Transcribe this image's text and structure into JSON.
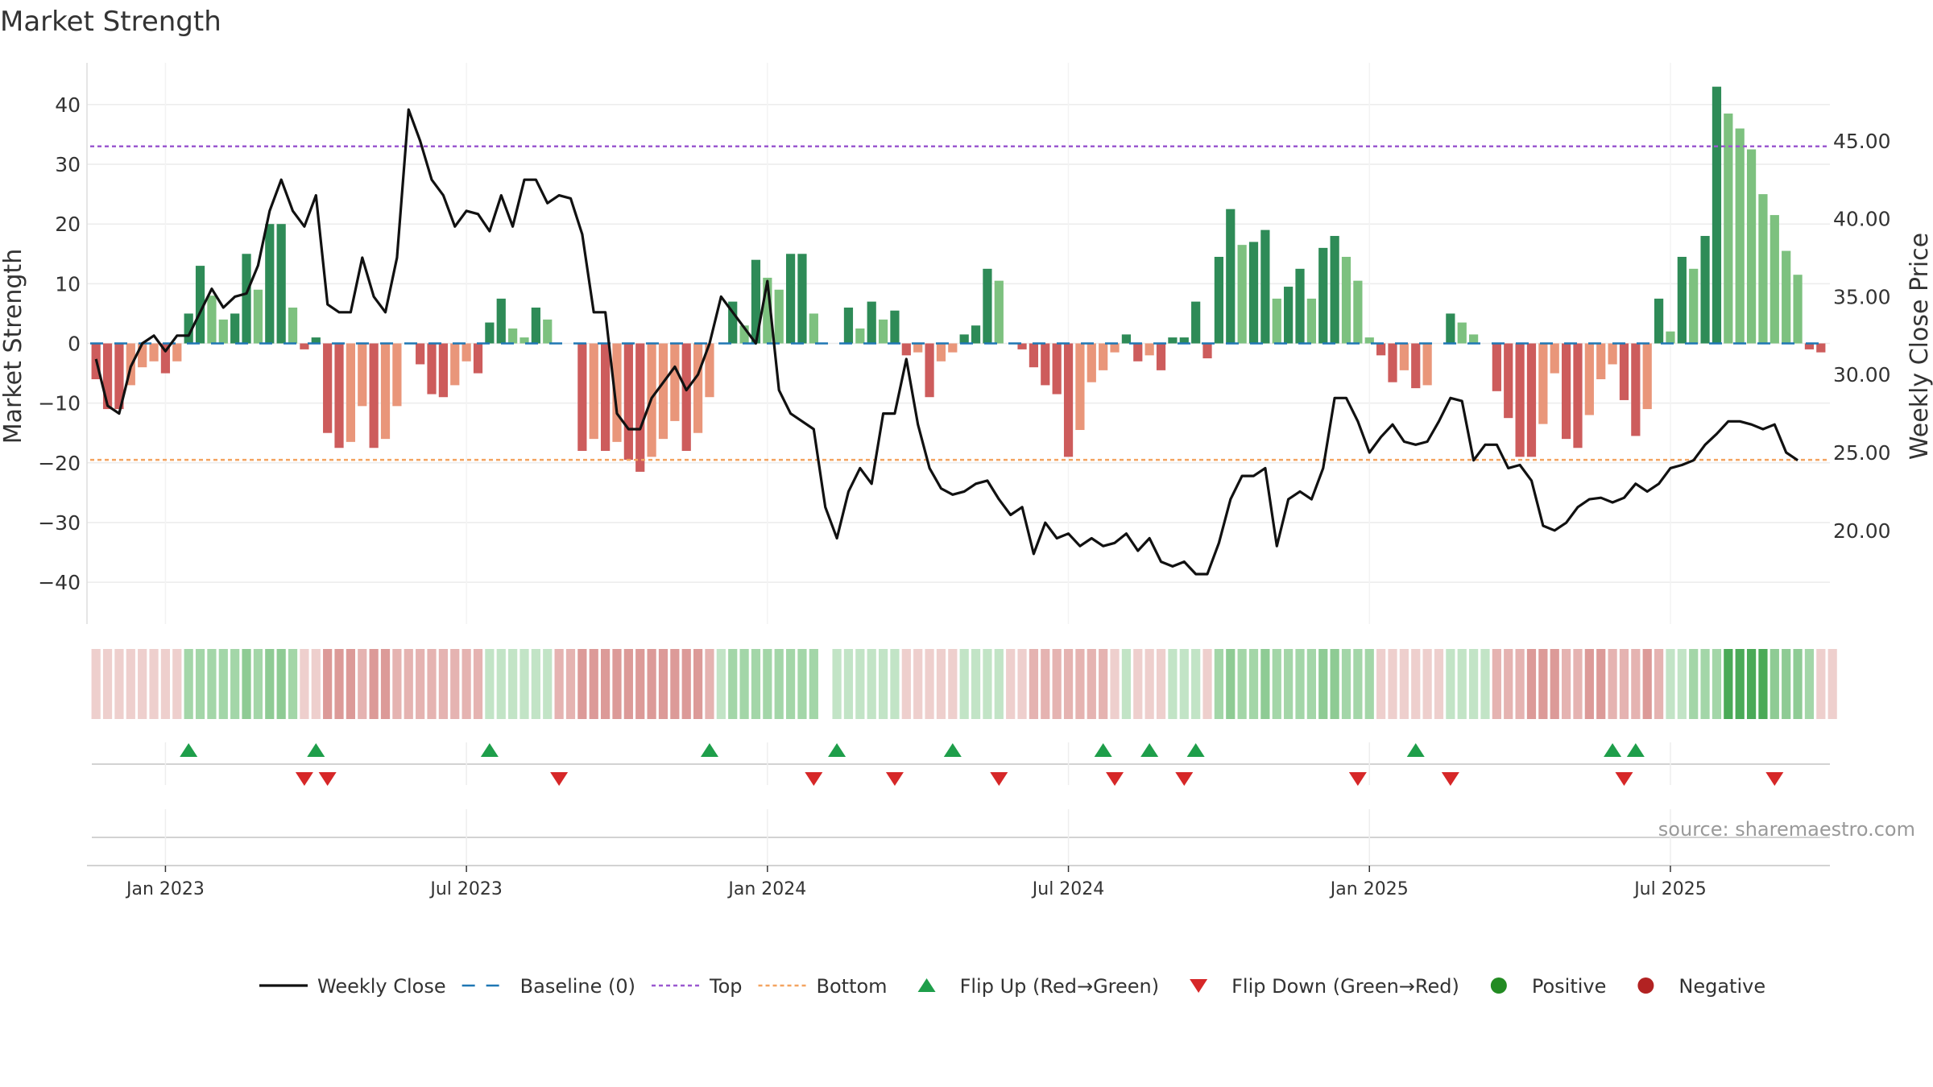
{
  "chart_data": {
    "type": "bar",
    "title": "Market Strength",
    "ylabel_left": "Market Strength",
    "ylabel_right": "Weekly Close Price",
    "ylim_left": [
      -47,
      47
    ],
    "ylim_right": [
      14.0,
      50.0
    ],
    "left_ticks": [
      {
        "v": 40,
        "label": "40"
      },
      {
        "v": 30,
        "label": "30"
      },
      {
        "v": 20,
        "label": "20"
      },
      {
        "v": 10,
        "label": "10"
      },
      {
        "v": 0,
        "label": "0"
      },
      {
        "v": -10,
        "label": "−10"
      },
      {
        "v": -20,
        "label": "−20"
      },
      {
        "v": -30,
        "label": "−30"
      },
      {
        "v": -40,
        "label": "−40"
      }
    ],
    "right_ticks": [
      {
        "v": 45,
        "label": "45.00"
      },
      {
        "v": 40,
        "label": "40.00"
      },
      {
        "v": 35,
        "label": "35.00"
      },
      {
        "v": 30,
        "label": "30.00"
      },
      {
        "v": 25,
        "label": "25.00"
      },
      {
        "v": 20,
        "label": "20.00"
      }
    ],
    "x_ticks": [
      {
        "week": 6,
        "label": "Jan 2023"
      },
      {
        "week": 32,
        "label": "Jul 2023"
      },
      {
        "week": 58,
        "label": "Jan 2024"
      },
      {
        "week": 84,
        "label": "Jul 2024"
      },
      {
        "week": 110,
        "label": "Jan 2025"
      },
      {
        "week": 136,
        "label": "Jul 2025"
      }
    ],
    "top_line": 33,
    "bottom_line": -19.5,
    "strength": [
      -6,
      -11,
      -11,
      -7,
      -4,
      -3,
      -5,
      -3,
      5,
      13,
      8,
      4,
      5,
      15,
      9,
      20,
      20,
      6,
      -1,
      1,
      -15,
      -17.5,
      -16.5,
      -10.5,
      -17.5,
      -16,
      -10.5,
      0,
      -3.5,
      -8.5,
      -9,
      -7,
      -3,
      -5,
      3.5,
      7.5,
      2.5,
      1,
      6,
      4,
      0,
      0,
      -18,
      -16,
      -18,
      -16.5,
      -19.5,
      -21.5,
      -19,
      -16,
      -13,
      -18,
      -15,
      -9,
      0,
      7,
      3,
      14,
      11,
      9,
      15,
      15,
      5,
      0,
      0,
      6,
      2.5,
      7,
      4,
      5.5,
      -2,
      -1.5,
      -9,
      -3,
      -1.5,
      1.5,
      3,
      12.5,
      10.5,
      0,
      -1,
      -4,
      -7,
      -8.5,
      -19,
      -14.5,
      -6.5,
      -4.5,
      -1.5,
      1.5,
      -3,
      -2,
      -4.5,
      1,
      1,
      7,
      -2.5,
      14.5,
      22.5,
      16.5,
      17,
      19,
      7.5,
      9.5,
      12.5,
      7.5,
      16,
      18,
      14.5,
      10.5,
      1,
      -2,
      -6.5,
      -4.5,
      -7.5,
      -7,
      0,
      5,
      3.5,
      1.5,
      0,
      -8,
      -12.5,
      -19,
      -19,
      -13.5,
      -5,
      -16,
      -17.5,
      -12,
      -6,
      -3.5,
      -9.5,
      -15.5,
      -11,
      7.5,
      2,
      14.5,
      12.5,
      18,
      43,
      38.5,
      36,
      32.5,
      25,
      21.5,
      15.5,
      11.5,
      -1,
      -1.5
    ],
    "weekly_close": [
      31,
      28,
      27.5,
      30.5,
      32,
      32.5,
      31.5,
      32.5,
      32.5,
      34,
      35.5,
      34.3,
      35,
      35.2,
      37,
      40.5,
      42.5,
      40.5,
      39.5,
      41.5,
      34.5,
      34,
      34,
      37.5,
      35,
      34,
      37.5,
      47,
      45,
      42.5,
      41.5,
      39.5,
      40.5,
      40.3,
      39.2,
      41.5,
      39.5,
      42.5,
      42.5,
      41,
      41.5,
      41.3,
      39,
      34,
      34,
      27.5,
      26.5,
      26.5,
      28.5,
      29.5,
      30.5,
      29,
      30,
      32,
      35,
      34,
      33,
      32,
      36,
      29,
      27.5,
      27,
      26.5,
      21.5,
      19.5,
      22.5,
      24,
      23,
      27.5,
      27.5,
      31,
      26.8,
      24,
      22.7,
      22.3,
      22.5,
      23,
      23.2,
      22,
      21,
      21.5,
      18.5,
      20.5,
      19.5,
      19.8,
      19,
      19.5,
      19,
      19.2,
      19.8,
      18.7,
      19.5,
      18,
      17.7,
      18,
      17.2,
      17.2,
      19.2,
      22,
      23.5,
      23.5,
      24,
      19,
      22,
      22.5,
      22,
      24,
      28.5,
      28.5,
      27,
      25,
      26,
      26.8,
      25.7,
      25.5,
      25.7,
      27,
      28.5,
      28.3,
      24.5,
      25.5,
      25.5,
      24,
      24.2,
      23.2,
      20.3,
      20,
      20.5,
      21.5,
      22,
      22.1,
      21.8,
      22.1,
      23,
      22.5,
      23,
      24,
      24.2,
      24.5,
      25.5,
      26.2,
      27,
      27,
      26.8,
      26.5,
      26.8,
      25,
      24.5
    ],
    "strip_shade": [
      -1,
      -1,
      -1,
      -1,
      -1,
      -1,
      -1,
      -1,
      2,
      2,
      2,
      2,
      2,
      3,
      2,
      3,
      3,
      2,
      -1,
      -1,
      -3,
      -3,
      -3,
      -2,
      -3,
      -3,
      -2,
      -2,
      -2,
      -2,
      -2,
      -2,
      -2,
      -2,
      1,
      1,
      1,
      1,
      1,
      1,
      -2,
      -2,
      -3,
      -3,
      -3,
      -3,
      -3,
      -3,
      -3,
      -3,
      -3,
      -3,
      -3,
      -2,
      1,
      2,
      2,
      2,
      2,
      2,
      2,
      2,
      2,
      0,
      1,
      1,
      1,
      1,
      1,
      1,
      -1,
      -1,
      -1,
      -1,
      -1,
      1,
      1,
      1,
      1,
      -1,
      -1,
      -2,
      -2,
      -2,
      -2,
      -2,
      -2,
      -2,
      -1,
      1,
      -1,
      -1,
      -1,
      1,
      1,
      1,
      -1,
      2,
      3,
      2,
      2,
      3,
      2,
      2,
      2,
      2,
      3,
      3,
      2,
      2,
      2,
      -1,
      -1,
      -1,
      -1,
      -1,
      -1,
      1,
      1,
      1,
      1,
      -2,
      -2,
      -2,
      -3,
      -3,
      -3,
      -2,
      -2,
      -3,
      -3,
      -2,
      -2,
      -2,
      -3,
      -2,
      1,
      1,
      2,
      2,
      2,
      4,
      4,
      4,
      4,
      3,
      3,
      3,
      2,
      -1,
      -1
    ],
    "flip_up_weeks": [
      8,
      19,
      34,
      53,
      64,
      74,
      87,
      91,
      95,
      114,
      131,
      133
    ],
    "flip_down_weeks": [
      18,
      20,
      40,
      62,
      69,
      78,
      88,
      94,
      109,
      117,
      132,
      145
    ],
    "legend": [
      {
        "key": "close",
        "label": "Weekly Close"
      },
      {
        "key": "baseline",
        "label": "Baseline (0)"
      },
      {
        "key": "top",
        "label": "Top"
      },
      {
        "key": "bottom",
        "label": "Bottom"
      },
      {
        "key": "flipup",
        "label": "Flip Up (Red→Green)"
      },
      {
        "key": "flipdown",
        "label": "Flip Down (Green→Red)"
      },
      {
        "key": "positive",
        "label": "Positive"
      },
      {
        "key": "negative",
        "label": "Negative"
      }
    ],
    "colors": {
      "pos_strong": "#2e8b57",
      "pos_weak": "#7dc17f",
      "neg_strong": "#cd5c5c",
      "neg_weak": "#e9967a",
      "close": "#111111",
      "baseline": "#1f77b4",
      "top": "#9b59d0",
      "bottom": "#f4a460",
      "flip_up": "#1e9e4a",
      "flip_down": "#d62728",
      "positive_dot": "#228b22",
      "negative_dot": "#b22222"
    }
  },
  "source_text": "source: sharemaestro.com"
}
